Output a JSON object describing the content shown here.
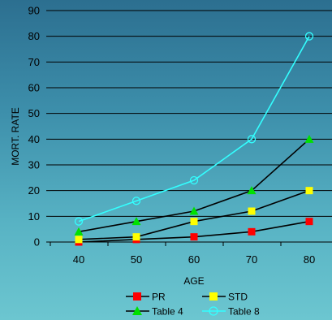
{
  "chart_data": {
    "type": "line",
    "xlabel": "AGE",
    "ylabel": "MORT. RATE",
    "x": [
      40,
      50,
      60,
      70,
      80
    ],
    "ylim": [
      0,
      90
    ],
    "yticks": [
      0,
      10,
      20,
      30,
      40,
      50,
      60,
      70,
      80,
      90
    ],
    "grid": "horizontal",
    "legend_position": "bottom",
    "series": [
      {
        "name": "PR",
        "values": [
          0,
          1,
          2,
          4,
          8
        ],
        "color": "#000000",
        "marker": "square",
        "marker_color": "#ff0000"
      },
      {
        "name": "STD",
        "values": [
          1,
          2,
          8,
          12,
          20
        ],
        "color": "#000000",
        "marker": "square",
        "marker_color": "#ffff00"
      },
      {
        "name": "Table 4",
        "values": [
          4,
          8,
          12,
          20,
          40
        ],
        "color": "#000000",
        "marker": "triangle",
        "marker_color": "#00e000"
      },
      {
        "name": "Table 8",
        "values": [
          8,
          16,
          24,
          40,
          80
        ],
        "color": "#33ffff",
        "marker": "circle",
        "marker_color": "#33ffff"
      }
    ]
  }
}
